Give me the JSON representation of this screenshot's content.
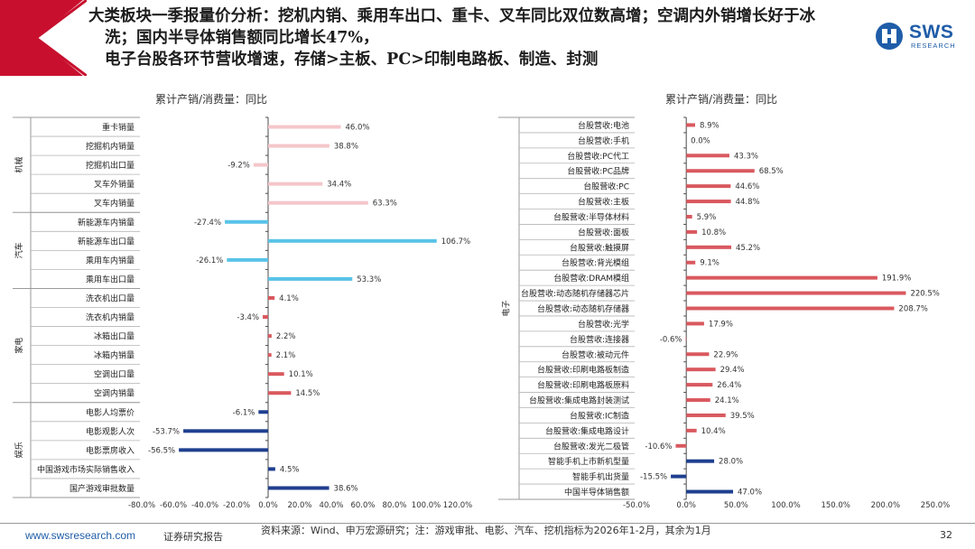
{
  "headline": {
    "line1": "大类板块一季报量价分析：挖机内销、乘用车出口、重卡、叉车同比双位数高增；空调内外销增长好于冰",
    "line2": "洗；国内半导体销售额同比增长47%，",
    "line3": "电子台股各环节营收增速，存储>主板、PC>印制电路板、制造、封测"
  },
  "logo": {
    "text": "SWS",
    "sub": "RESEARCH"
  },
  "colors": {
    "accent": "#c8102e",
    "light_pink": "#f4c6ca",
    "light_blue": "#59c3e8",
    "navy": "#1f3f8f",
    "red_bar": "#d9595f",
    "brand_blue": "#1f5da8"
  },
  "chart_data": [
    {
      "type": "bar",
      "orientation": "horizontal",
      "title": "累计产销/消费量：同比",
      "xlim": [
        -80,
        120
      ],
      "xticks": [
        "-80.0%",
        "-60.0%",
        "-40.0%",
        "-20.0%",
        "0.0%",
        "20.0%",
        "40.0%",
        "60.0%",
        "80.0%",
        "100.0%",
        "120.0%"
      ],
      "groups": [
        {
          "name": "机械",
          "color": "#f4c6ca",
          "count": 5
        },
        {
          "name": "汽车",
          "color": "#59c3e8",
          "count": 4
        },
        {
          "name": "家电",
          "color": "#d9595f",
          "count": 6
        },
        {
          "name": "娱乐",
          "color": "#1f3f8f",
          "count": 5
        }
      ],
      "categories": [
        "重卡销量",
        "挖掘机内销量",
        "挖掘机出口量",
        "叉车外销量",
        "叉车内销量",
        "新能源车内销量",
        "新能源车出口量",
        "乘用车内销量",
        "乘用车出口量",
        "洗衣机出口量",
        "洗衣机内销量",
        "冰箱出口量",
        "冰箱内销量",
        "空调出口量",
        "空调内销量",
        "电影人均票价",
        "电影观影人次",
        "电影票房收入",
        "中国游戏市场实际销售收入",
        "国产游戏审批数量"
      ],
      "values": [
        46.0,
        38.8,
        -9.2,
        34.4,
        63.3,
        -27.4,
        106.7,
        -26.1,
        53.3,
        4.1,
        -3.4,
        2.2,
        2.1,
        10.1,
        14.5,
        -6.1,
        -53.7,
        -56.5,
        4.5,
        38.6
      ],
      "labels": [
        "46.0%",
        "38.8%",
        "-9.2%",
        "34.4%",
        "63.3%",
        "-27.4%",
        "106.7%",
        "-26.1%",
        "53.3%",
        "4.1%",
        "-3.4%",
        "2.2%",
        "2.1%",
        "10.1%",
        "14.5%",
        "-6.1%",
        "-53.7%",
        "-56.5%",
        "4.5%",
        "38.6%"
      ]
    },
    {
      "type": "bar",
      "orientation": "horizontal",
      "title": "累计产销/消费量：同比",
      "xlim": [
        -50,
        250
      ],
      "xticks": [
        "-50.0%",
        "0.0%",
        "50.0%",
        "100.0%",
        "150.0%",
        "200.0%",
        "250.0%"
      ],
      "groups": [
        {
          "name": "电子",
          "count": 25
        }
      ],
      "categories": [
        "台股营收:电池",
        "台股营收:手机",
        "台股营收:PC代工",
        "台股营收:PC品牌",
        "台股营收:PC",
        "台股营收:主板",
        "台股营收:半导体材料",
        "台股营收:面板",
        "台股营收:触摸屏",
        "台股营收:背光模组",
        "台股营收:DRAM模组",
        "台股营收:动态随机存储器芯片",
        "台股营收:动态随机存储器",
        "台股营收:光学",
        "台股营收:连接器",
        "台股营收:被动元件",
        "台股营收:印刷电路板制造",
        "台股营收:印刷电路板原料",
        "台股营收:集成电路封装测试",
        "台股营收:IC制造",
        "台股营收:集成电路设计",
        "台股营收:发光二极管",
        "智能手机上市新机型量",
        "智能手机出货量",
        "中国半导体销售额"
      ],
      "values": [
        8.9,
        0.0,
        43.3,
        68.5,
        44.6,
        44.8,
        5.9,
        10.8,
        45.2,
        9.1,
        191.9,
        220.5,
        208.7,
        17.9,
        -0.6,
        22.9,
        29.4,
        26.4,
        24.1,
        39.5,
        10.4,
        -10.6,
        28.0,
        -15.5,
        47.0
      ],
      "labels": [
        "8.9%",
        "0.0%",
        "43.3%",
        "68.5%",
        "44.6%",
        "44.8%",
        "5.9%",
        "10.8%",
        "45.2%",
        "9.1%",
        "191.9%",
        "220.5%",
        "208.7%",
        "17.9%",
        "-0.6%",
        "22.9%",
        "29.4%",
        "26.4%",
        "24.1%",
        "39.5%",
        "10.4%",
        "-10.6%",
        "28.0%",
        "-15.5%",
        "47.0%"
      ],
      "colors": [
        "#d9595f",
        "#d9595f",
        "#d9595f",
        "#d9595f",
        "#d9595f",
        "#d9595f",
        "#d9595f",
        "#d9595f",
        "#d9595f",
        "#d9595f",
        "#d9595f",
        "#d9595f",
        "#d9595f",
        "#d9595f",
        "#d9595f",
        "#d9595f",
        "#d9595f",
        "#d9595f",
        "#d9595f",
        "#d9595f",
        "#d9595f",
        "#d9595f",
        "#1f3f8f",
        "#1f3f8f",
        "#1f3f8f"
      ]
    }
  ],
  "footer": {
    "url": "www.swsresearch.com",
    "category": "证券研究报告",
    "source": "资料来源：Wind、申万宏源研究；注：游戏审批、电影、汽车、挖机指标为2026年1-2月，其余为1月",
    "page": "32"
  }
}
